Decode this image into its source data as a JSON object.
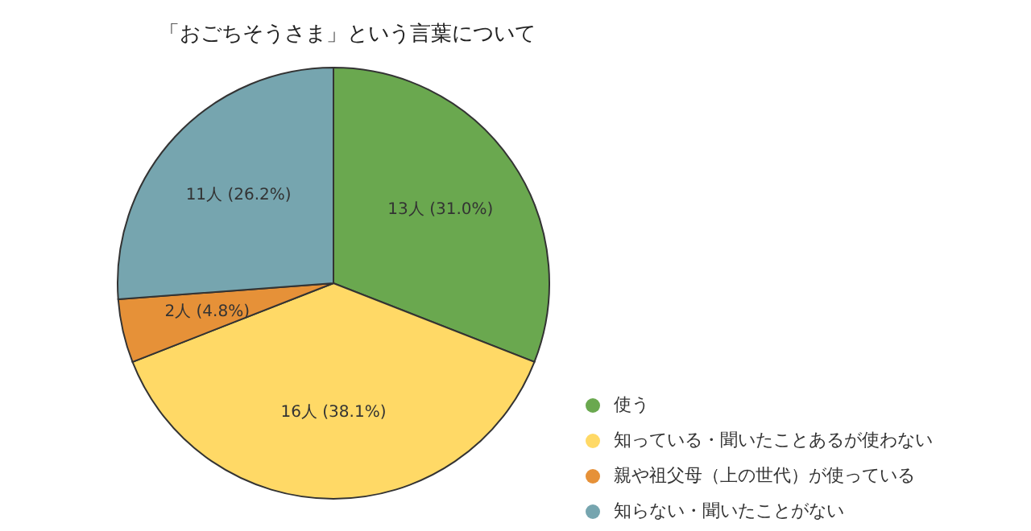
{
  "chart_data": {
    "type": "pie",
    "title": "「おごちそうさま」という言葉について",
    "categories": [
      "使う",
      "知っている・聞いたことあるが使わない",
      "親や祖父母（上の世代）が使っている",
      "知らない・聞いたことがない"
    ],
    "values": [
      13,
      16,
      2,
      11
    ],
    "colors": [
      "#6aa84f",
      "#ffd966",
      "#e69138",
      "#76a5af"
    ],
    "value_labels": [
      "13人 (31.0%)",
      "16人 (38.1%)",
      "2人 (4.8%)",
      "11人 (26.2%)"
    ],
    "legend": "bottom right"
  }
}
